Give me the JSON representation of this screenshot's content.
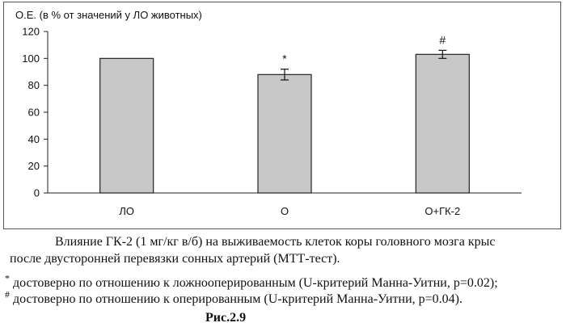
{
  "chart_data": {
    "type": "bar",
    "ylabel": "О.Е. (в % от значений у ЛО животных)",
    "categories": [
      "ЛО",
      "О",
      "О+ГК-2"
    ],
    "values": [
      100,
      88,
      103
    ],
    "errors": [
      null,
      4,
      3
    ],
    "annotations": [
      "",
      "*",
      "#"
    ],
    "ylim": [
      0,
      120
    ],
    "yticks": [
      0,
      20,
      40,
      60,
      80,
      100,
      120
    ],
    "bar_color": "#c8c8c8",
    "bar_stroke": "#222222"
  },
  "caption": {
    "line1": "Влияние ГК-2 (1 мг/кг в/б)  на выживаемость клеток коры головного мозга крыс",
    "line2": "после двусторонней перевязки сонных артерий (МТТ-тест)."
  },
  "notes": {
    "star_mark": "*",
    "star_text": " достоверно по отношению к ложнооперированным (U-критерий Манна-Уитни, р=0.02);",
    "hash_mark": "#",
    "hash_text": " достоверно по отношению к оперированным (U-критерий Манна-Уитни, р=0.04)."
  },
  "figure_label": "Рис.2.9"
}
